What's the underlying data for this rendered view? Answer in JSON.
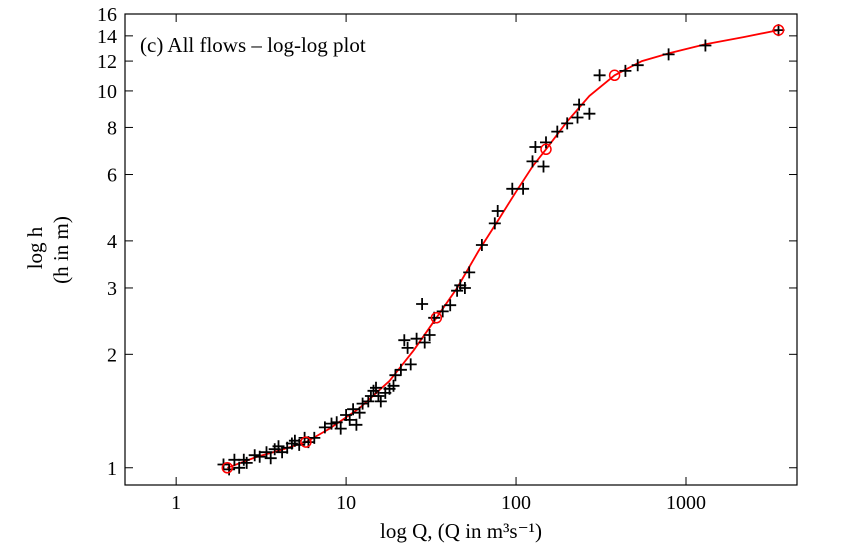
{
  "chart_data": {
    "type": "scatter",
    "title": "(c) All flows – log-log plot",
    "xlabel": "log Q, (Q in m³s⁻¹)",
    "ylabel_line1": "log h",
    "ylabel_line2": "(h in m)",
    "x_scale": "log",
    "y_scale": "log",
    "xlim": [
      0.5,
      4500
    ],
    "ylim": [
      0.9,
      16
    ],
    "x_ticks": [
      1,
      10,
      100,
      1000
    ],
    "x_tick_labels": [
      "1",
      "10",
      "100",
      "1000"
    ],
    "y_ticks": [
      1,
      2,
      3,
      4,
      6,
      8,
      10,
      12,
      14,
      16
    ],
    "y_tick_labels": [
      "1",
      "2",
      "3",
      "4",
      "6",
      "8",
      "10",
      "12",
      "14",
      "16"
    ],
    "grid": false,
    "series": [
      {
        "marker": "plus",
        "color": "#000000",
        "points": [
          [
            1.9,
            1.02
          ],
          [
            2.05,
            0.99
          ],
          [
            2.2,
            1.05
          ],
          [
            2.35,
            1.0
          ],
          [
            2.5,
            1.05
          ],
          [
            2.6,
            1.03
          ],
          [
            2.9,
            1.08
          ],
          [
            3.1,
            1.07
          ],
          [
            3.4,
            1.1
          ],
          [
            3.6,
            1.06
          ],
          [
            3.8,
            1.12
          ],
          [
            4.0,
            1.14
          ],
          [
            4.2,
            1.1
          ],
          [
            4.5,
            1.13
          ],
          [
            4.8,
            1.16
          ],
          [
            5.0,
            1.18
          ],
          [
            5.3,
            1.15
          ],
          [
            5.7,
            1.2
          ],
          [
            6.0,
            1.17
          ],
          [
            6.5,
            1.2
          ],
          [
            7.5,
            1.28
          ],
          [
            8.2,
            1.31
          ],
          [
            8.8,
            1.32
          ],
          [
            9.3,
            1.27
          ],
          [
            10.0,
            1.38
          ],
          [
            10.5,
            1.34
          ],
          [
            11.0,
            1.43
          ],
          [
            11.5,
            1.3
          ],
          [
            12.0,
            1.4
          ],
          [
            12.5,
            1.48
          ],
          [
            13.5,
            1.5
          ],
          [
            14.0,
            1.55
          ],
          [
            14.5,
            1.6
          ],
          [
            15.0,
            1.63
          ],
          [
            15.5,
            1.55
          ],
          [
            16.0,
            1.5
          ],
          [
            17.0,
            1.58
          ],
          [
            18.0,
            1.62
          ],
          [
            19.0,
            1.65
          ],
          [
            19.5,
            1.76
          ],
          [
            21.0,
            1.82
          ],
          [
            22.0,
            2.18
          ],
          [
            23.0,
            2.08
          ],
          [
            24.0,
            1.88
          ],
          [
            26.0,
            2.2
          ],
          [
            28.0,
            2.72
          ],
          [
            29.0,
            2.15
          ],
          [
            31.0,
            2.25
          ],
          [
            33.0,
            2.5
          ],
          [
            37.0,
            2.6
          ],
          [
            41.0,
            2.7
          ],
          [
            45.0,
            2.95
          ],
          [
            47.0,
            3.05
          ],
          [
            50.0,
            3.0
          ],
          [
            53.0,
            3.3
          ],
          [
            63.0,
            3.9
          ],
          [
            75.0,
            4.45
          ],
          [
            78.0,
            4.8
          ],
          [
            95.0,
            5.5
          ],
          [
            110.0,
            5.5
          ],
          [
            125.0,
            6.5
          ],
          [
            130.0,
            7.1
          ],
          [
            145.0,
            6.3
          ],
          [
            150.0,
            7.3
          ],
          [
            175.0,
            7.8
          ],
          [
            200.0,
            8.2
          ],
          [
            230.0,
            8.5
          ],
          [
            235.0,
            9.2
          ],
          [
            270.0,
            8.7
          ],
          [
            310.0,
            11.0
          ],
          [
            440.0,
            11.3
          ],
          [
            520.0,
            11.7
          ],
          [
            790.0,
            12.5
          ],
          [
            1300.0,
            13.2
          ],
          [
            3500.0,
            14.5
          ]
        ]
      },
      {
        "marker": "circle",
        "color": "#ff0000",
        "points": [
          [
            2.0,
            1.0
          ],
          [
            5.8,
            1.17
          ],
          [
            34.0,
            2.5
          ],
          [
            150.0,
            7.0
          ],
          [
            380.0,
            11.0
          ],
          [
            3500.0,
            14.5
          ]
        ]
      },
      {
        "marker": "line",
        "color": "#ff0000",
        "points": [
          [
            2.0,
            1.0
          ],
          [
            3.0,
            1.07
          ],
          [
            4.0,
            1.11
          ],
          [
            5.8,
            1.17
          ],
          [
            8.0,
            1.27
          ],
          [
            12.0,
            1.44
          ],
          [
            18.0,
            1.7
          ],
          [
            25.0,
            2.05
          ],
          [
            34.0,
            2.5
          ],
          [
            45.0,
            3.0
          ],
          [
            60.0,
            3.75
          ],
          [
            80.0,
            4.6
          ],
          [
            100.0,
            5.4
          ],
          [
            125.0,
            6.3
          ],
          [
            150.0,
            7.0
          ],
          [
            200.0,
            8.3
          ],
          [
            270.0,
            9.7
          ],
          [
            380.0,
            11.0
          ],
          [
            550.0,
            12.0
          ],
          [
            800.0,
            12.6
          ],
          [
            1300.0,
            13.3
          ],
          [
            2200.0,
            13.9
          ],
          [
            3500.0,
            14.5
          ]
        ]
      }
    ]
  }
}
